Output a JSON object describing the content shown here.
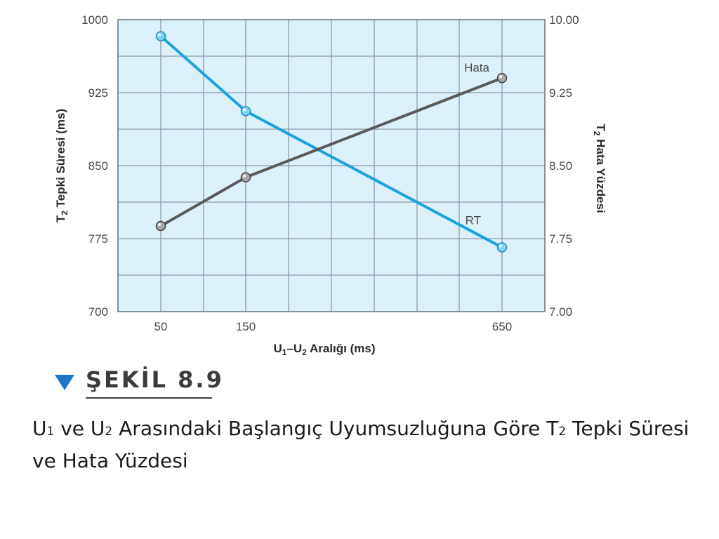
{
  "figure": {
    "heading": "ŞEKİL 8.9",
    "caption_parts": [
      "U",
      "1",
      " ve U",
      "2",
      " Arasındaki Başlangıç Uyumsuzluğuna Göre T",
      "2",
      " Tepki Süresi ve Hata Yüzdesi"
    ]
  },
  "chart_data": {
    "type": "line",
    "x": [
      50,
      150,
      650
    ],
    "x_tick_labels": [
      "50",
      "150",
      "650"
    ],
    "xlabel_parts": [
      "U",
      "1",
      "–U",
      "2",
      " Aralığı (ms)"
    ],
    "ylabel_left_parts": [
      "T",
      "2",
      " Tepki Süresi (ms)"
    ],
    "ylabel_right_parts": [
      "T",
      "2",
      " Hata Yüzdesi"
    ],
    "ylim_left": [
      700,
      1000
    ],
    "ylim_right": [
      7.0,
      10.0
    ],
    "y_ticks_left": [
      "700",
      "775",
      "850",
      "925",
      "1000"
    ],
    "y_ticks_right": [
      "7.00",
      "7.75",
      "8.50",
      "9.25",
      "10.00"
    ],
    "grid": true,
    "series": [
      {
        "name": "RT",
        "axis": "left",
        "color": "#1aa3dd",
        "values": [
          983,
          906,
          766
        ]
      },
      {
        "name": "Hata",
        "axis": "right",
        "color": "#5a5a5a",
        "values": [
          7.88,
          8.38,
          9.4
        ]
      }
    ],
    "background": "#dcf0fa",
    "grid_color": "#8a9aa8"
  }
}
